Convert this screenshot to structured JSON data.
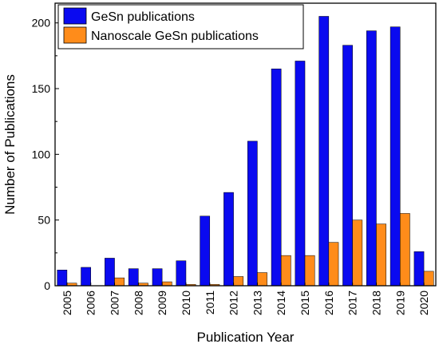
{
  "chart_data": {
    "type": "bar",
    "xlabel": "Publication Year",
    "ylabel": "Number of Publications",
    "categories": [
      "2005",
      "2006",
      "2007",
      "2008",
      "2009",
      "2010",
      "2011",
      "2012",
      "2013",
      "2014",
      "2015",
      "2016",
      "2017",
      "2018",
      "2019",
      "2020"
    ],
    "series": [
      {
        "name": "GeSn publications",
        "color": "#0a0af0",
        "values": [
          12,
          14,
          21,
          13,
          13,
          19,
          53,
          71,
          110,
          165,
          171,
          205,
          183,
          194,
          197,
          26
        ]
      },
      {
        "name": "Nanoscale GeSn publications",
        "color": "#ff8c1a",
        "values": [
          2,
          0,
          6,
          2,
          3,
          1,
          1,
          7,
          10,
          23,
          23,
          33,
          50,
          47,
          55,
          11
        ]
      }
    ],
    "ylim": [
      0,
      215
    ],
    "yticks": [
      0,
      50,
      100,
      150,
      200
    ],
    "legend_position": "top-left",
    "grid": false
  }
}
